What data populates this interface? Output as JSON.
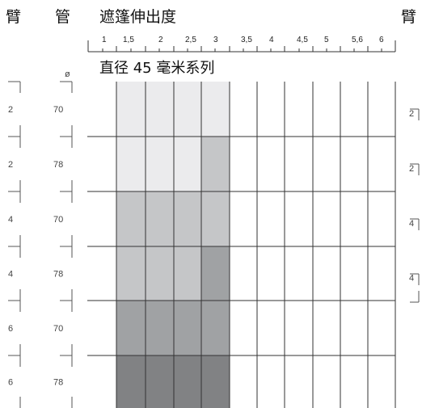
{
  "headers": {
    "arm_left": "臂",
    "tube": "管",
    "extension": "遮篷伸出度",
    "arm_right": "臂",
    "diameter_symbol": "ø",
    "series_label": "直径 45 毫米系列"
  },
  "extension_ticks": [
    "1",
    "1,5",
    "2",
    "2,5",
    "3",
    "3,5",
    "4",
    "4,5",
    "5",
    "5,6",
    "6"
  ],
  "rows": [
    {
      "arm": "2",
      "tube": "70",
      "right_arm": "2",
      "shades": [
        "#ebebed",
        "#ebebed",
        "#ebebed",
        "#ebebed"
      ]
    },
    {
      "arm": "2",
      "tube": "78",
      "right_arm": "2",
      "shades": [
        "#ebebed",
        "#ebebed",
        "#ebebed",
        "#c5c6c8"
      ]
    },
    {
      "arm": "4",
      "tube": "70",
      "right_arm": "4",
      "shades": [
        "#c5c6c8",
        "#c5c6c8",
        "#c5c6c8",
        "#c5c6c8"
      ]
    },
    {
      "arm": "4",
      "tube": "78",
      "right_arm": "4",
      "shades": [
        "#c5c6c8",
        "#c5c6c8",
        "#c5c6c8",
        "#a0a2a4"
      ]
    },
    {
      "arm": "6",
      "tube": "70",
      "right_arm": "",
      "shades": [
        "#a0a2a4",
        "#a0a2a4",
        "#a0a2a4",
        "#a0a2a4"
      ]
    },
    {
      "arm": "6",
      "tube": "78",
      "right_arm": "",
      "shades": [
        "#818284",
        "#818284",
        "#818284",
        "#818284"
      ]
    }
  ]
}
